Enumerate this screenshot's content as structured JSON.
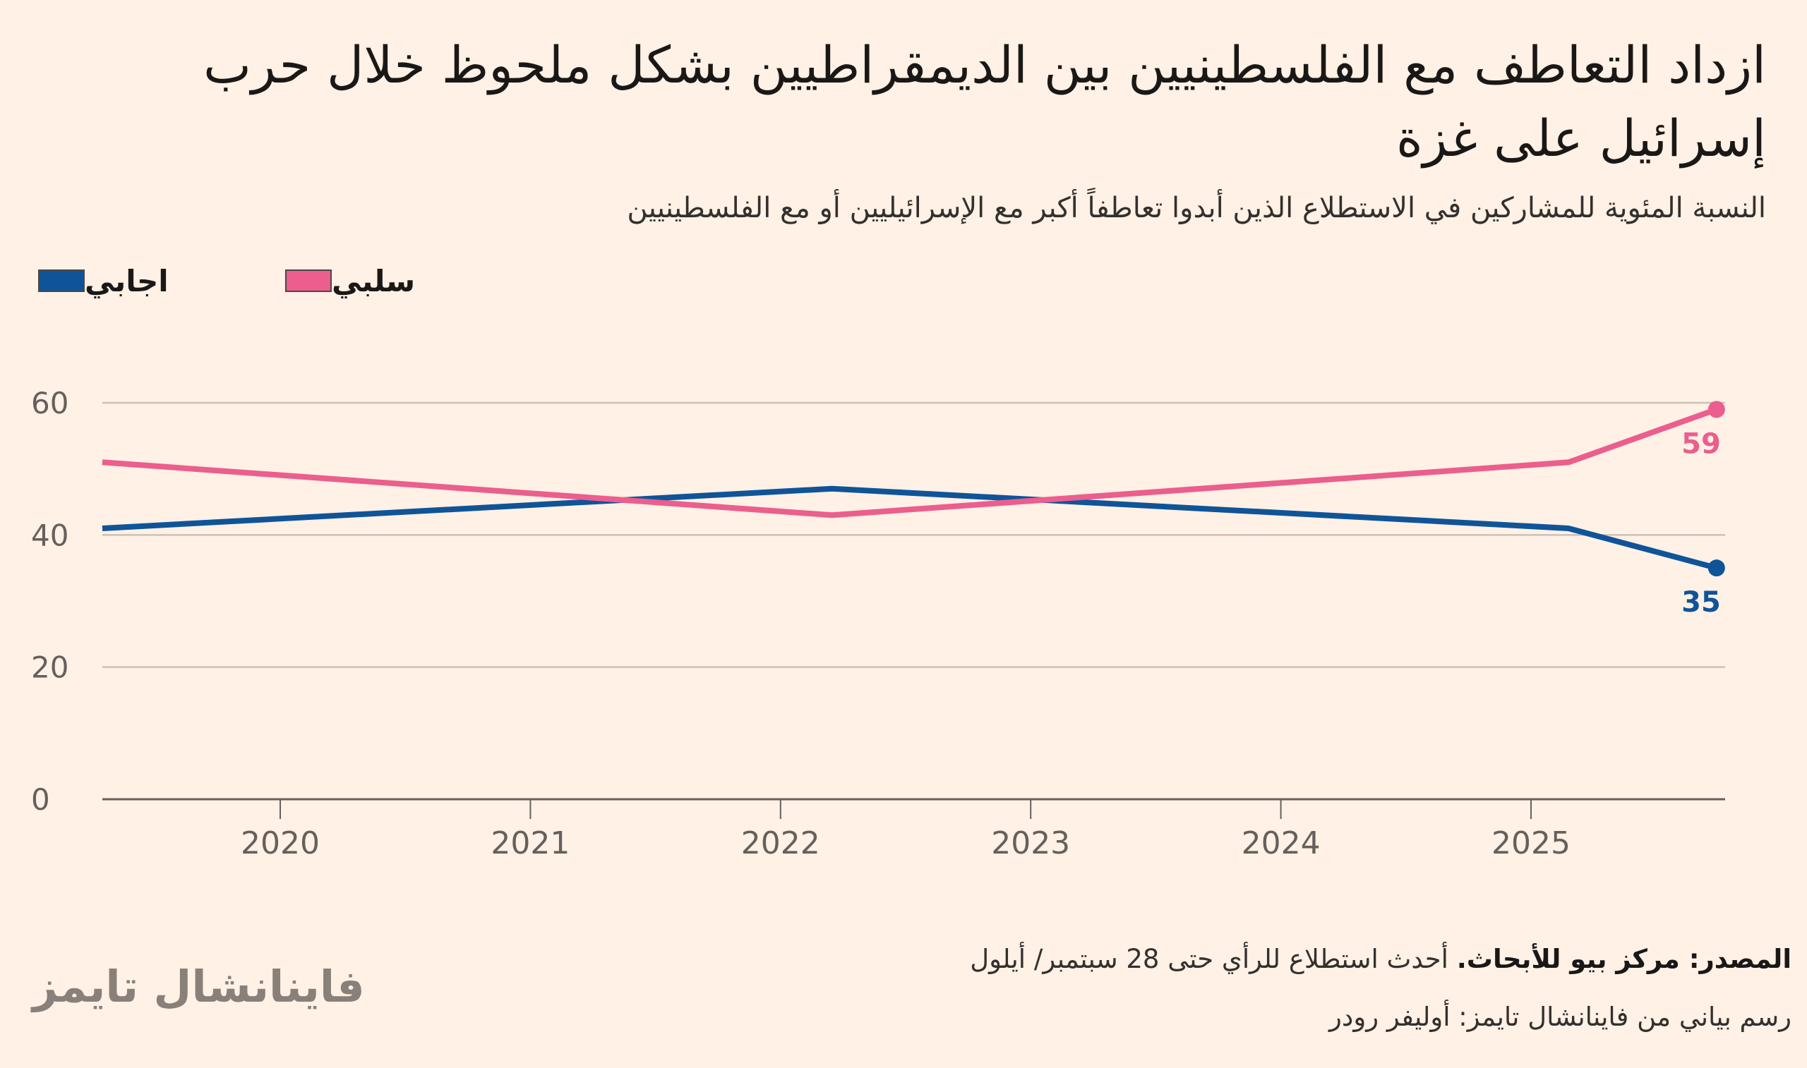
{
  "title": "ازداد التعاطف مع الفلسطينيين بين الديمقراطيين بشكل ملحوظ خلال حرب إسرائيل على غزة",
  "subtitle": "النسبة المئوية للمشاركين في الاستطلاع الذين أبدوا تعاطفاً أكبر مع الإسرائيليين أو مع الفلسطينيين",
  "legend": [
    {
      "label": "اجابي",
      "color": "#0f5499"
    },
    {
      "label": "سلبي",
      "color": "#eb5e8d"
    }
  ],
  "footer": {
    "source_label": "المصدر: مركز بيو للأبحاث.",
    "source_note": "أحدث استطلاع للرأي حتى 28 سبتمبر/ أيلول",
    "credit": "رسم بياني من فاينانشال تايمز: أوليفر رودر",
    "logo": "فاينانشال تايمز"
  },
  "chart_data": {
    "type": "line",
    "xlabel": "",
    "ylabel": "",
    "ylim": [
      0,
      60
    ],
    "yticks": [
      "0",
      "20",
      "40",
      "60"
    ],
    "xticks": [
      "2020",
      "2021",
      "2022",
      "2023",
      "2024",
      "2025"
    ],
    "grid": true,
    "legend_position": "top-left",
    "series": [
      {
        "name": "اجابي",
        "color": "#0f5499",
        "x": [
          "2019-04-15",
          "2022-03-15",
          "2025-02-25",
          "2025-09-28"
        ],
        "y": [
          41,
          47,
          41,
          35
        ],
        "end_label": "35"
      },
      {
        "name": "سلبي",
        "color": "#eb5e8d",
        "x": [
          "2019-04-15",
          "2022-03-15",
          "2025-02-25",
          "2025-09-28"
        ],
        "y": [
          51,
          43,
          51,
          59
        ],
        "end_label": "59"
      }
    ]
  }
}
